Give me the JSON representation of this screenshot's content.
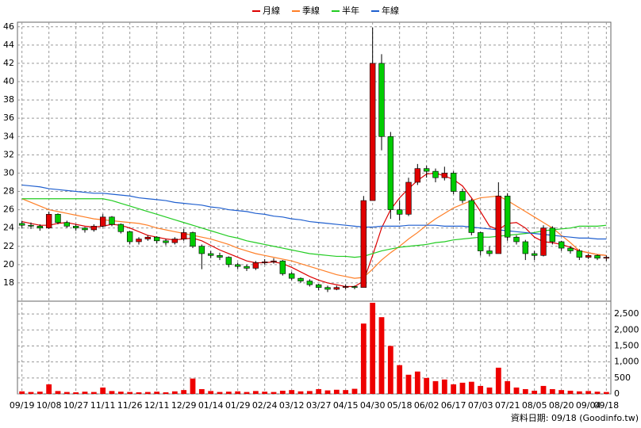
{
  "chart_data": {
    "type": "candlestick",
    "categories": [
      "09/19",
      null,
      null,
      "10/08",
      null,
      null,
      "10/27",
      null,
      null,
      "11/11",
      null,
      null,
      "11/26",
      null,
      null,
      "12/11",
      null,
      null,
      "12/29",
      null,
      null,
      "01/14",
      null,
      null,
      "01/29",
      null,
      null,
      "02/24",
      null,
      null,
      "03/12",
      null,
      null,
      "03/27",
      null,
      null,
      "04/15",
      null,
      null,
      "04/30",
      null,
      null,
      "05/18",
      null,
      null,
      "06/02",
      null,
      null,
      "06/17",
      null,
      null,
      "07/03",
      null,
      null,
      "07/21",
      null,
      null,
      "08/05",
      null,
      null,
      "08/20",
      null,
      null,
      "09/04",
      null,
      "09/18"
    ],
    "ohlc": {
      "up_color": "#e00000",
      "down_color": "#00cc00",
      "open": [
        24.5,
        24.3,
        24.2,
        24.0,
        25.5,
        24.6,
        24.2,
        24.0,
        23.8,
        24.2,
        25.2,
        24.4,
        23.6,
        22.5,
        22.8,
        23.0,
        22.6,
        22.4,
        22.8,
        23.5,
        22.0,
        21.2,
        21.0,
        20.8,
        20.0,
        19.8,
        19.6,
        20.2,
        20.3,
        20.4,
        19.0,
        18.5,
        18.2,
        17.8,
        17.5,
        17.3,
        17.5,
        17.6,
        17.5,
        27.0,
        42.0,
        34.0,
        26.0,
        25.5,
        29.0,
        30.5,
        30.2,
        29.5,
        30.0,
        28.0,
        27.0,
        23.5,
        21.5,
        21.2,
        27.5,
        23.0,
        22.5,
        21.2,
        21.0,
        24.0,
        22.5,
        21.8,
        21.5,
        20.8,
        21.0,
        20.7
      ],
      "high": [
        24.8,
        24.6,
        24.4,
        25.8,
        25.6,
        24.8,
        24.4,
        24.1,
        24.4,
        25.5,
        25.3,
        24.5,
        23.7,
        23.0,
        23.2,
        23.1,
        22.8,
        23.0,
        23.9,
        23.6,
        22.2,
        21.5,
        21.3,
        20.9,
        20.2,
        20.0,
        20.4,
        20.6,
        20.7,
        20.5,
        19.2,
        18.6,
        18.4,
        17.9,
        17.7,
        17.7,
        17.8,
        17.7,
        27.5,
        45.9,
        43.0,
        34.5,
        27.0,
        29.5,
        31.0,
        30.8,
        30.5,
        30.7,
        30.2,
        28.3,
        27.2,
        23.6,
        22.0,
        29.0,
        27.8,
        23.2,
        22.7,
        21.5,
        24.3,
        24.2,
        22.6,
        22.0,
        21.7,
        21.2,
        21.1,
        21.0
      ],
      "low": [
        24.0,
        23.9,
        23.7,
        23.9,
        24.4,
        24.0,
        23.7,
        23.5,
        23.6,
        24.1,
        24.2,
        23.4,
        22.2,
        22.2,
        22.6,
        22.3,
        22.1,
        22.2,
        22.6,
        21.8,
        19.5,
        20.7,
        20.5,
        19.7,
        19.5,
        19.3,
        19.4,
        20.0,
        20.1,
        18.8,
        18.3,
        18.0,
        17.6,
        17.2,
        17.0,
        17.2,
        17.3,
        17.3,
        17.5,
        27.0,
        32.5,
        25.0,
        24.8,
        25.3,
        28.7,
        29.5,
        29.0,
        29.2,
        27.7,
        26.7,
        23.2,
        21.0,
        20.9,
        21.2,
        22.6,
        22.2,
        20.5,
        20.5,
        20.9,
        22.2,
        21.5,
        21.2,
        20.5,
        20.6,
        20.5,
        20.4
      ],
      "close": [
        24.3,
        24.2,
        24.0,
        25.5,
        24.6,
        24.2,
        24.0,
        23.8,
        24.2,
        25.2,
        24.4,
        23.6,
        22.5,
        22.8,
        23.0,
        22.6,
        22.4,
        22.8,
        23.5,
        22.0,
        21.2,
        21.0,
        20.8,
        20.0,
        19.8,
        19.6,
        20.2,
        20.3,
        20.4,
        19.0,
        18.5,
        18.2,
        17.8,
        17.5,
        17.3,
        17.5,
        17.6,
        17.5,
        27.0,
        42.0,
        34.0,
        26.0,
        25.5,
        29.0,
        30.5,
        30.2,
        29.5,
        30.0,
        28.0,
        27.0,
        23.5,
        21.5,
        21.2,
        27.5,
        23.0,
        22.5,
        21.2,
        21.0,
        24.0,
        22.5,
        21.8,
        21.5,
        20.8,
        21.0,
        20.7,
        20.8
      ]
    },
    "series": [
      {
        "name": "月線",
        "color": "#dd0000",
        "values": [
          24.7,
          24.5,
          24.3,
          24.3,
          24.5,
          24.6,
          24.4,
          24.2,
          24.1,
          24.2,
          24.4,
          24.3,
          24.0,
          23.6,
          23.2,
          23.0,
          22.8,
          22.7,
          22.8,
          22.9,
          22.6,
          22.1,
          21.6,
          21.2,
          20.8,
          20.4,
          20.2,
          20.2,
          20.3,
          20.1,
          19.7,
          19.2,
          18.7,
          18.3,
          18.0,
          17.8,
          17.6,
          17.6,
          18.2,
          21.0,
          24.0,
          26.0,
          27.3,
          28.3,
          29.2,
          29.9,
          30.0,
          29.7,
          29.3,
          28.6,
          27.3,
          25.8,
          24.2,
          23.8,
          24.5,
          24.6,
          24.0,
          23.0,
          22.5,
          22.4,
          22.2,
          21.9,
          21.5,
          21.3,
          21.1,
          21.0
        ]
      },
      {
        "name": "季線",
        "color": "#ff7f27",
        "values": [
          27.2,
          26.8,
          26.4,
          26.0,
          25.8,
          25.6,
          25.4,
          25.2,
          25.0,
          24.9,
          24.8,
          24.7,
          24.6,
          24.5,
          24.3,
          24.0,
          23.8,
          23.6,
          23.4,
          23.2,
          23.0,
          22.8,
          22.5,
          22.2,
          21.8,
          21.5,
          21.2,
          21.0,
          20.8,
          20.6,
          20.4,
          20.1,
          19.8,
          19.5,
          19.2,
          18.9,
          18.7,
          18.5,
          18.6,
          19.5,
          20.5,
          21.3,
          22.0,
          22.8,
          23.5,
          24.3,
          25.0,
          25.6,
          26.2,
          26.6,
          27.0,
          27.3,
          27.4,
          27.5,
          27.0,
          26.4,
          25.8,
          25.2,
          24.6,
          24.0,
          23.2,
          22.4,
          21.5,
          21.3,
          21.1,
          21.0
        ]
      },
      {
        "name": "半年",
        "color": "#22cc22",
        "values": [
          27.2,
          27.2,
          27.2,
          27.2,
          27.2,
          27.2,
          27.2,
          27.2,
          27.2,
          27.2,
          27.0,
          26.7,
          26.4,
          26.1,
          25.8,
          25.5,
          25.2,
          24.9,
          24.6,
          24.3,
          24.0,
          23.7,
          23.4,
          23.1,
          22.9,
          22.6,
          22.4,
          22.2,
          22.0,
          21.8,
          21.6,
          21.4,
          21.2,
          21.1,
          21.0,
          20.9,
          20.9,
          20.8,
          20.9,
          21.2,
          21.5,
          21.7,
          21.9,
          22.0,
          22.1,
          22.2,
          22.4,
          22.5,
          22.7,
          22.8,
          22.9,
          23.0,
          23.0,
          23.1,
          23.2,
          23.3,
          23.4,
          23.5,
          23.7,
          23.8,
          23.9,
          24.0,
          24.2,
          24.2,
          24.2,
          24.3
        ]
      },
      {
        "name": "年線",
        "color": "#1f5fcf",
        "values": [
          28.7,
          28.6,
          28.5,
          28.3,
          28.2,
          28.1,
          28.0,
          27.9,
          27.8,
          27.8,
          27.7,
          27.6,
          27.5,
          27.3,
          27.2,
          27.1,
          27.0,
          26.8,
          26.7,
          26.6,
          26.5,
          26.3,
          26.2,
          26.0,
          25.9,
          25.8,
          25.6,
          25.5,
          25.3,
          25.2,
          25.0,
          24.9,
          24.7,
          24.6,
          24.5,
          24.4,
          24.3,
          24.2,
          24.1,
          24.1,
          24.2,
          24.2,
          24.2,
          24.3,
          24.3,
          24.3,
          24.3,
          24.2,
          24.2,
          24.2,
          24.1,
          24.0,
          23.9,
          23.8,
          23.7,
          23.6,
          23.5,
          23.4,
          23.3,
          23.2,
          23.1,
          23.0,
          22.9,
          22.9,
          22.8,
          22.8
        ]
      }
    ],
    "volume": {
      "color": "#ee0000",
      "axis": "y2",
      "values": [
        80,
        60,
        70,
        300,
        90,
        60,
        50,
        70,
        60,
        200,
        90,
        70,
        60,
        50,
        60,
        70,
        50,
        80,
        120,
        480,
        150,
        90,
        60,
        70,
        80,
        60,
        90,
        70,
        60,
        100,
        120,
        80,
        90,
        150,
        110,
        130,
        120,
        160,
        2200,
        2850,
        2400,
        1500,
        900,
        600,
        700,
        500,
        400,
        450,
        300,
        350,
        380,
        250,
        200,
        820,
        400,
        200,
        150,
        100,
        250,
        150,
        120,
        100,
        80,
        90,
        70,
        60
      ]
    },
    "ylim": [
      16,
      46.5
    ],
    "yticks": [
      18,
      20,
      22,
      24,
      26,
      28,
      30,
      32,
      34,
      36,
      38,
      40,
      42,
      44,
      46
    ],
    "y2lim": [
      0,
      2900
    ],
    "y2ticks": [
      0,
      {
        "value": 500,
        "label": "500"
      },
      {
        "value": 1000,
        "label": "1,000"
      },
      {
        "value": 1500,
        "label": "1,500"
      },
      {
        "value": 2000,
        "label": "2,000"
      },
      {
        "value": 2500,
        "label": "2,500"
      }
    ],
    "grid": true,
    "legend": "top",
    "footer": "資料日期: 09/18  (Goodinfo.tw)"
  }
}
